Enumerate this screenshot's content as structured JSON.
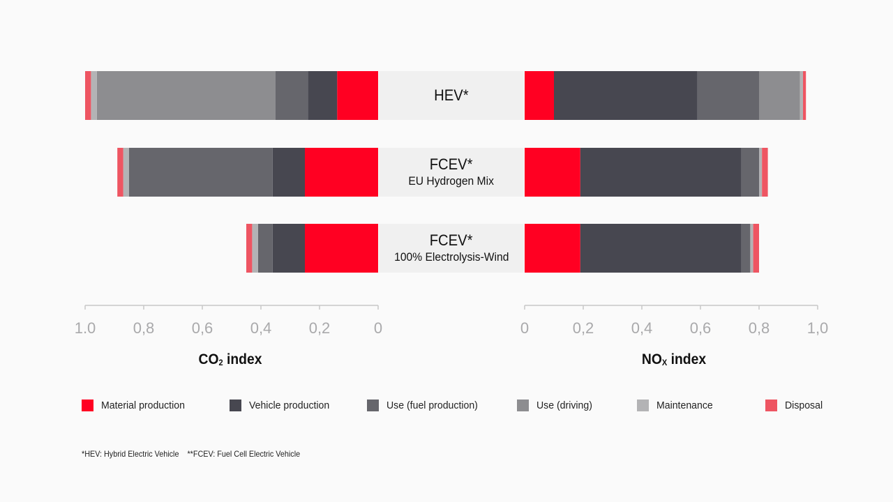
{
  "chart_data": {
    "type": "bar",
    "layout": "diverging horizontal stacked bar (butterfly)",
    "categories": [
      {
        "name": "HEV*",
        "sub": ""
      },
      {
        "name": "FCEV*",
        "sub": "EU Hydrogen Mix"
      },
      {
        "name": "FCEV*",
        "sub": "100% Electrolysis-Wind"
      }
    ],
    "components": [
      {
        "name": "Material production",
        "color": "#ff0022"
      },
      {
        "name": "Vehicle production",
        "color": "#474750"
      },
      {
        "name": "Use (fuel production)",
        "color": "#66666c"
      },
      {
        "name": "Use (driving)",
        "color": "#8d8d90"
      },
      {
        "name": "Maintenance",
        "color": "#b3b3b5"
      },
      {
        "name": "Disposal",
        "color": "#ee5562"
      }
    ],
    "left": {
      "title": "CO",
      "title_sub": "2",
      "title_rest": " index",
      "xlim": [
        1.0,
        0
      ],
      "ticks": [
        "1.0",
        "0,8",
        "0,6",
        "0,4",
        "0,2",
        "0"
      ],
      "tick_values": [
        1.0,
        0.8,
        0.6,
        0.4,
        0.2,
        0
      ],
      "series": [
        {
          "name": "Material production",
          "values": [
            0.14,
            0.25,
            0.25
          ]
        },
        {
          "name": "Vehicle production",
          "values": [
            0.1,
            0.11,
            0.11
          ]
        },
        {
          "name": "Use (fuel production)",
          "values": [
            0.11,
            0.49,
            0.05
          ]
        },
        {
          "name": "Use (driving)",
          "values": [
            0.61,
            0,
            0
          ]
        },
        {
          "name": "Maintenance",
          "values": [
            0.02,
            0.02,
            0.02
          ]
        },
        {
          "name": "Disposal",
          "values": [
            0.02,
            0.02,
            0.02
          ]
        }
      ]
    },
    "right": {
      "title": "NO",
      "title_sub": "X",
      "title_rest": " index",
      "xlim": [
        0,
        1.0
      ],
      "ticks": [
        "0",
        "0,2",
        "0,4",
        "0,6",
        "0,8",
        "1,0"
      ],
      "tick_values": [
        0,
        0.2,
        0.4,
        0.6,
        0.8,
        1.0
      ],
      "series": [
        {
          "name": "Material production",
          "values": [
            0.1,
            0.19,
            0.19
          ]
        },
        {
          "name": "Vehicle production",
          "values": [
            0.49,
            0.55,
            0.55
          ]
        },
        {
          "name": "Use (fuel production)",
          "values": [
            0.21,
            0.06,
            0.03
          ]
        },
        {
          "name": "Use (driving)",
          "values": [
            0.14,
            0,
            0
          ]
        },
        {
          "name": "Maintenance",
          "values": [
            0.01,
            0.01,
            0.01
          ]
        },
        {
          "name": "Disposal",
          "values": [
            0.01,
            0.02,
            0.02
          ]
        }
      ]
    }
  },
  "footnote": "*HEV: Hybrid Electric Vehicle    **FCEV: Fuel Cell Electric Vehicle"
}
